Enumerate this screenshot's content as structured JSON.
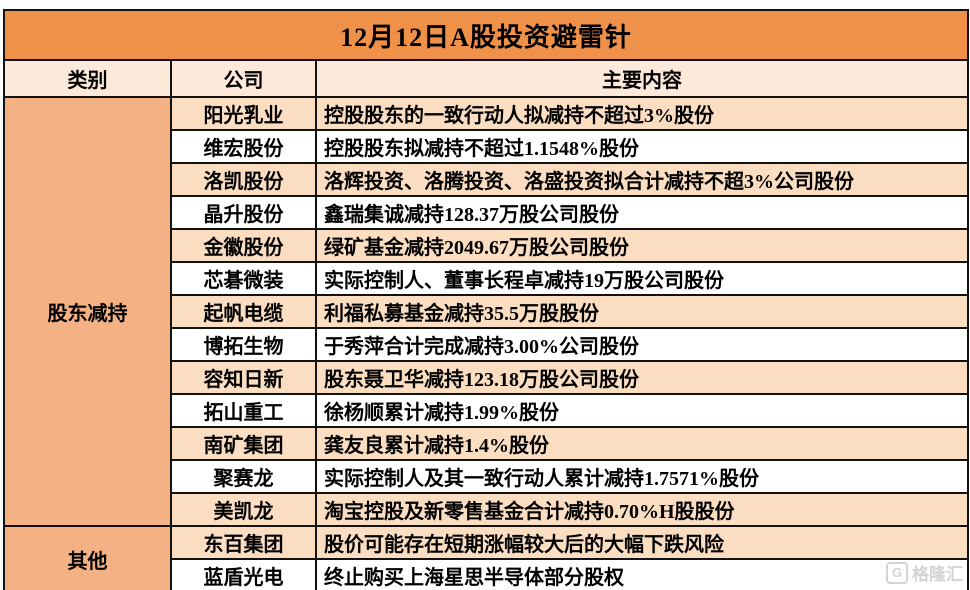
{
  "page": {
    "title": "12月12日A股投资避雷针"
  },
  "table": {
    "headers": {
      "category": "类别",
      "company": "公司",
      "content": "主要内容"
    },
    "categories": [
      {
        "label": "股东减持",
        "rowspan": 13
      },
      {
        "label": "其他",
        "rowspan": 2
      }
    ],
    "rows": [
      {
        "company": "阳光乳业",
        "content": "控股股东的一致行动人拟减持不超过3%股份"
      },
      {
        "company": "维宏股份",
        "content": "控股股东拟减持不超过1.1548%股份"
      },
      {
        "company": "洛凯股份",
        "content": "洛辉投资、洛腾投资、洛盛投资拟合计减持不超3%公司股份"
      },
      {
        "company": "晶升股份",
        "content": "鑫瑞集诚减持128.37万股公司股份"
      },
      {
        "company": "金徽股份",
        "content": "绿矿基金减持2049.67万股公司股份"
      },
      {
        "company": "芯碁微装",
        "content": "实际控制人、董事长程卓减持19万股公司股份"
      },
      {
        "company": "起帆电缆",
        "content": "利福私募基金减持35.5万股股份"
      },
      {
        "company": "博拓生物",
        "content": "于秀萍合计完成减持3.00%公司股份"
      },
      {
        "company": "容知日新",
        "content": "股东聂卫华减持123.18万股公司股份"
      },
      {
        "company": "拓山重工",
        "content": "徐杨顺累计减持1.99%股份"
      },
      {
        "company": "南矿集团",
        "content": "龚友良累计减持1.4%股份"
      },
      {
        "company": "聚赛龙",
        "content": "实际控制人及其一致行动人累计减持1.7571%股份"
      },
      {
        "company": "美凯龙",
        "content": "淘宝控股及新零售基金合计减持0.70%H股股份"
      },
      {
        "company": "东百集团",
        "content": "股价可能存在短期涨幅较大后的大幅下跌风险"
      },
      {
        "company": "蓝盾光电",
        "content": "终止购买上海星思半导体部分股权"
      }
    ]
  },
  "watermark": {
    "logo": "G",
    "brand": "格隆汇"
  },
  "colors": {
    "title_bar_bg": "#f0914a",
    "title_text": "#fffdf8",
    "header_row_bg": "#fce9d9",
    "category_bg": "#f4b183",
    "row_peach_bg": "#fbdec1",
    "border": "#121212",
    "watermark_gray": "#cccccc"
  }
}
